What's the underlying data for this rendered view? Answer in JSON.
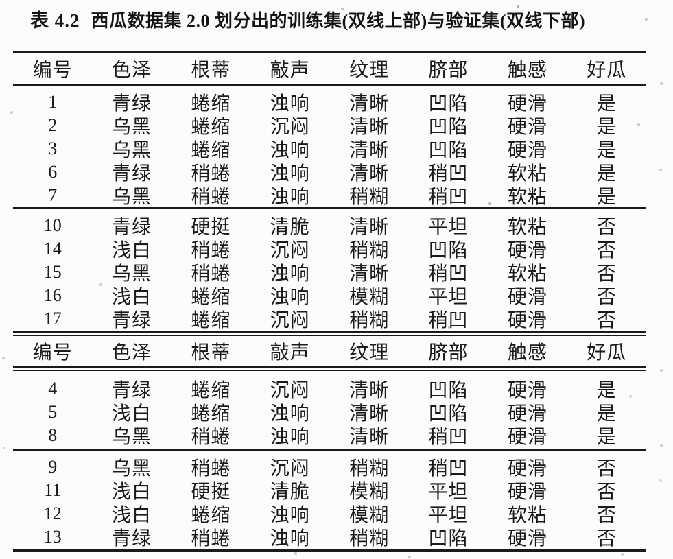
{
  "caption": {
    "label": "表 4.2",
    "text": "西瓜数据集 2.0 划分出的训练集(双线上部)与验证集(双线下部)"
  },
  "colors": {
    "ink": "#1a1a1a",
    "paper": "#fcfcfb"
  },
  "table": {
    "columns": [
      "编号",
      "色泽",
      "根蒂",
      "敲声",
      "纹理",
      "脐部",
      "触感",
      "好瓜"
    ],
    "sections": [
      {
        "name": "training-set",
        "groups": [
          {
            "rows": [
              [
                "1",
                "青绿",
                "蜷缩",
                "浊响",
                "清晰",
                "凹陷",
                "硬滑",
                "是"
              ],
              [
                "2",
                "乌黑",
                "蜷缩",
                "沉闷",
                "清晰",
                "凹陷",
                "硬滑",
                "是"
              ],
              [
                "3",
                "乌黑",
                "蜷缩",
                "浊响",
                "清晰",
                "凹陷",
                "硬滑",
                "是"
              ],
              [
                "6",
                "青绿",
                "稍蜷",
                "浊响",
                "清晰",
                "稍凹",
                "软粘",
                "是"
              ],
              [
                "7",
                "乌黑",
                "稍蜷",
                "浊响",
                "稍糊",
                "稍凹",
                "软粘",
                "是"
              ]
            ]
          },
          {
            "rows": [
              [
                "10",
                "青绿",
                "硬挺",
                "清脆",
                "清晰",
                "平坦",
                "软粘",
                "否"
              ],
              [
                "14",
                "浅白",
                "稍蜷",
                "沉闷",
                "稍糊",
                "凹陷",
                "硬滑",
                "否"
              ],
              [
                "15",
                "乌黑",
                "稍蜷",
                "浊响",
                "清晰",
                "稍凹",
                "软粘",
                "否"
              ],
              [
                "16",
                "浅白",
                "蜷缩",
                "浊响",
                "模糊",
                "平坦",
                "硬滑",
                "否"
              ],
              [
                "17",
                "青绿",
                "蜷缩",
                "沉闷",
                "稍糊",
                "稍凹",
                "硬滑",
                "否"
              ]
            ]
          }
        ]
      },
      {
        "name": "validation-set",
        "groups": [
          {
            "rows": [
              [
                "4",
                "青绿",
                "蜷缩",
                "沉闷",
                "清晰",
                "凹陷",
                "硬滑",
                "是"
              ],
              [
                "5",
                "浅白",
                "蜷缩",
                "浊响",
                "清晰",
                "凹陷",
                "硬滑",
                "是"
              ],
              [
                "8",
                "乌黑",
                "稍蜷",
                "浊响",
                "清晰",
                "稍凹",
                "硬滑",
                "是"
              ]
            ]
          },
          {
            "rows": [
              [
                "9",
                "乌黑",
                "稍蜷",
                "沉闷",
                "稍糊",
                "稍凹",
                "硬滑",
                "否"
              ],
              [
                "11",
                "浅白",
                "硬挺",
                "清脆",
                "模糊",
                "平坦",
                "硬滑",
                "否"
              ],
              [
                "12",
                "浅白",
                "蜷缩",
                "浊响",
                "模糊",
                "平坦",
                "软粘",
                "否"
              ],
              [
                "13",
                "青绿",
                "稍蜷",
                "浊响",
                "稍糊",
                "凹陷",
                "硬滑",
                "否"
              ]
            ]
          }
        ]
      }
    ]
  }
}
